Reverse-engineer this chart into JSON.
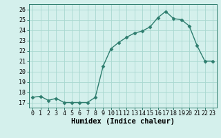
{
  "x": [
    0,
    1,
    2,
    3,
    4,
    5,
    6,
    7,
    8,
    9,
    10,
    11,
    12,
    13,
    14,
    15,
    16,
    17,
    18,
    19,
    20,
    21,
    22,
    23
  ],
  "y": [
    17.5,
    17.6,
    17.2,
    17.4,
    17.0,
    17.0,
    17.0,
    17.0,
    17.5,
    20.5,
    22.2,
    22.8,
    23.3,
    23.7,
    23.9,
    24.3,
    25.2,
    25.8,
    25.1,
    25.0,
    24.4,
    22.5,
    21.0,
    21.0
  ],
  "line_color": "#2e7d6e",
  "marker": "D",
  "markersize": 2.5,
  "linewidth": 1.0,
  "background_color": "#d4f0ec",
  "grid_color": "#a8d8d0",
  "xlabel": "Humidex (Indice chaleur)",
  "xlim": [
    -0.5,
    23.5
  ],
  "ylim": [
    16.5,
    26.5
  ],
  "yticks": [
    17,
    18,
    19,
    20,
    21,
    22,
    23,
    24,
    25,
    26
  ],
  "xticks": [
    0,
    1,
    2,
    3,
    4,
    5,
    6,
    7,
    8,
    9,
    10,
    11,
    12,
    13,
    14,
    15,
    16,
    17,
    18,
    19,
    20,
    21,
    22,
    23
  ],
  "xlabel_fontsize": 7.5,
  "tick_fontsize": 6.0
}
